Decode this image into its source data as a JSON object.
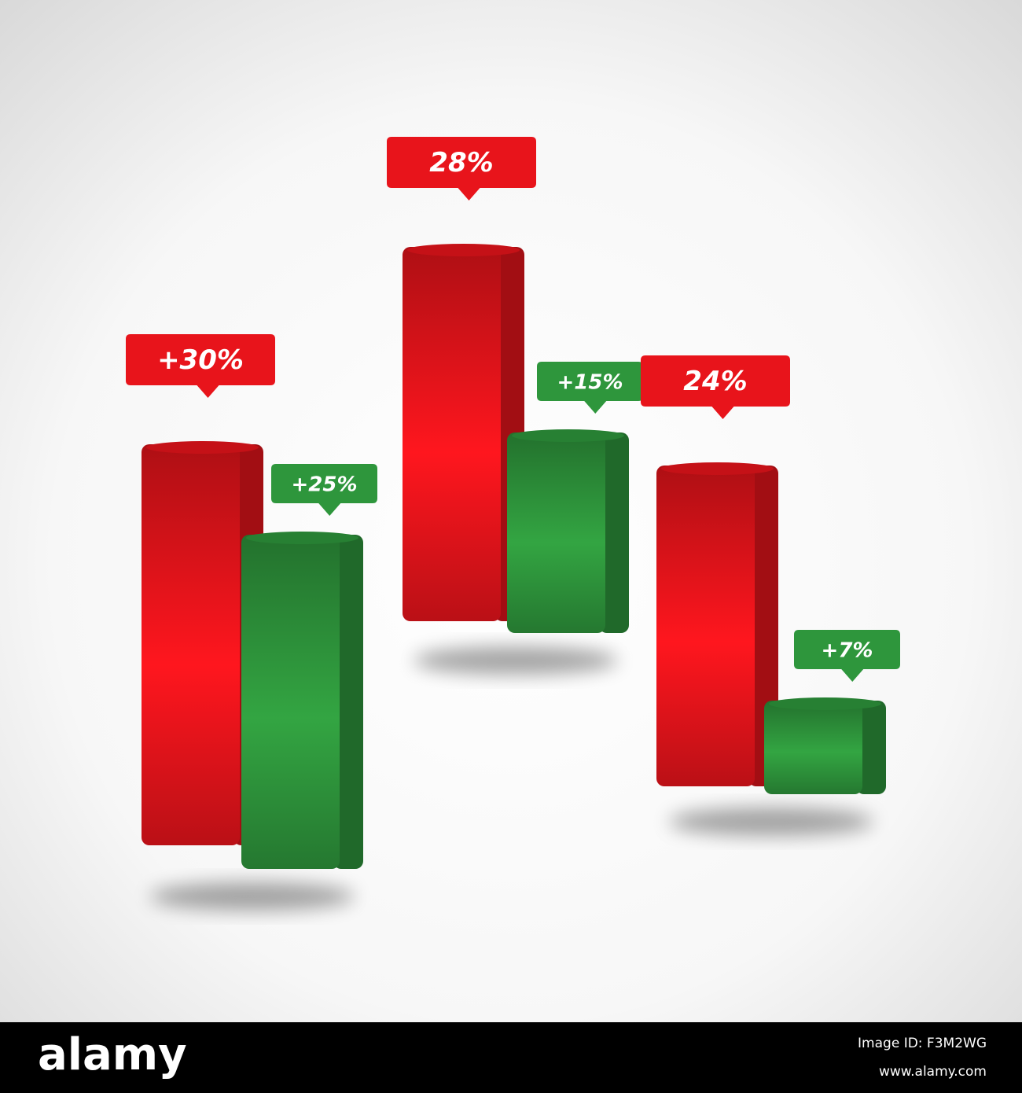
{
  "chart_data": [
    {
      "type": "bar",
      "values": [
        30,
        25
      ],
      "value_labels": [
        "+30%",
        "+25%"
      ],
      "colors": [
        "#e8141b",
        "#2e963c"
      ]
    },
    {
      "type": "bar",
      "values": [
        28,
        15
      ],
      "value_labels": [
        "28%",
        "+15%"
      ],
      "colors": [
        "#e8141b",
        "#2e963c"
      ]
    },
    {
      "type": "bar",
      "values": [
        24,
        7
      ],
      "value_labels": [
        "24%",
        "+7%"
      ],
      "colors": [
        "#e8141b",
        "#2e963c"
      ]
    }
  ],
  "footer": {
    "logo": "alamy",
    "image_id": "Image ID: F3M2WG",
    "url": "www.alamy.com"
  }
}
